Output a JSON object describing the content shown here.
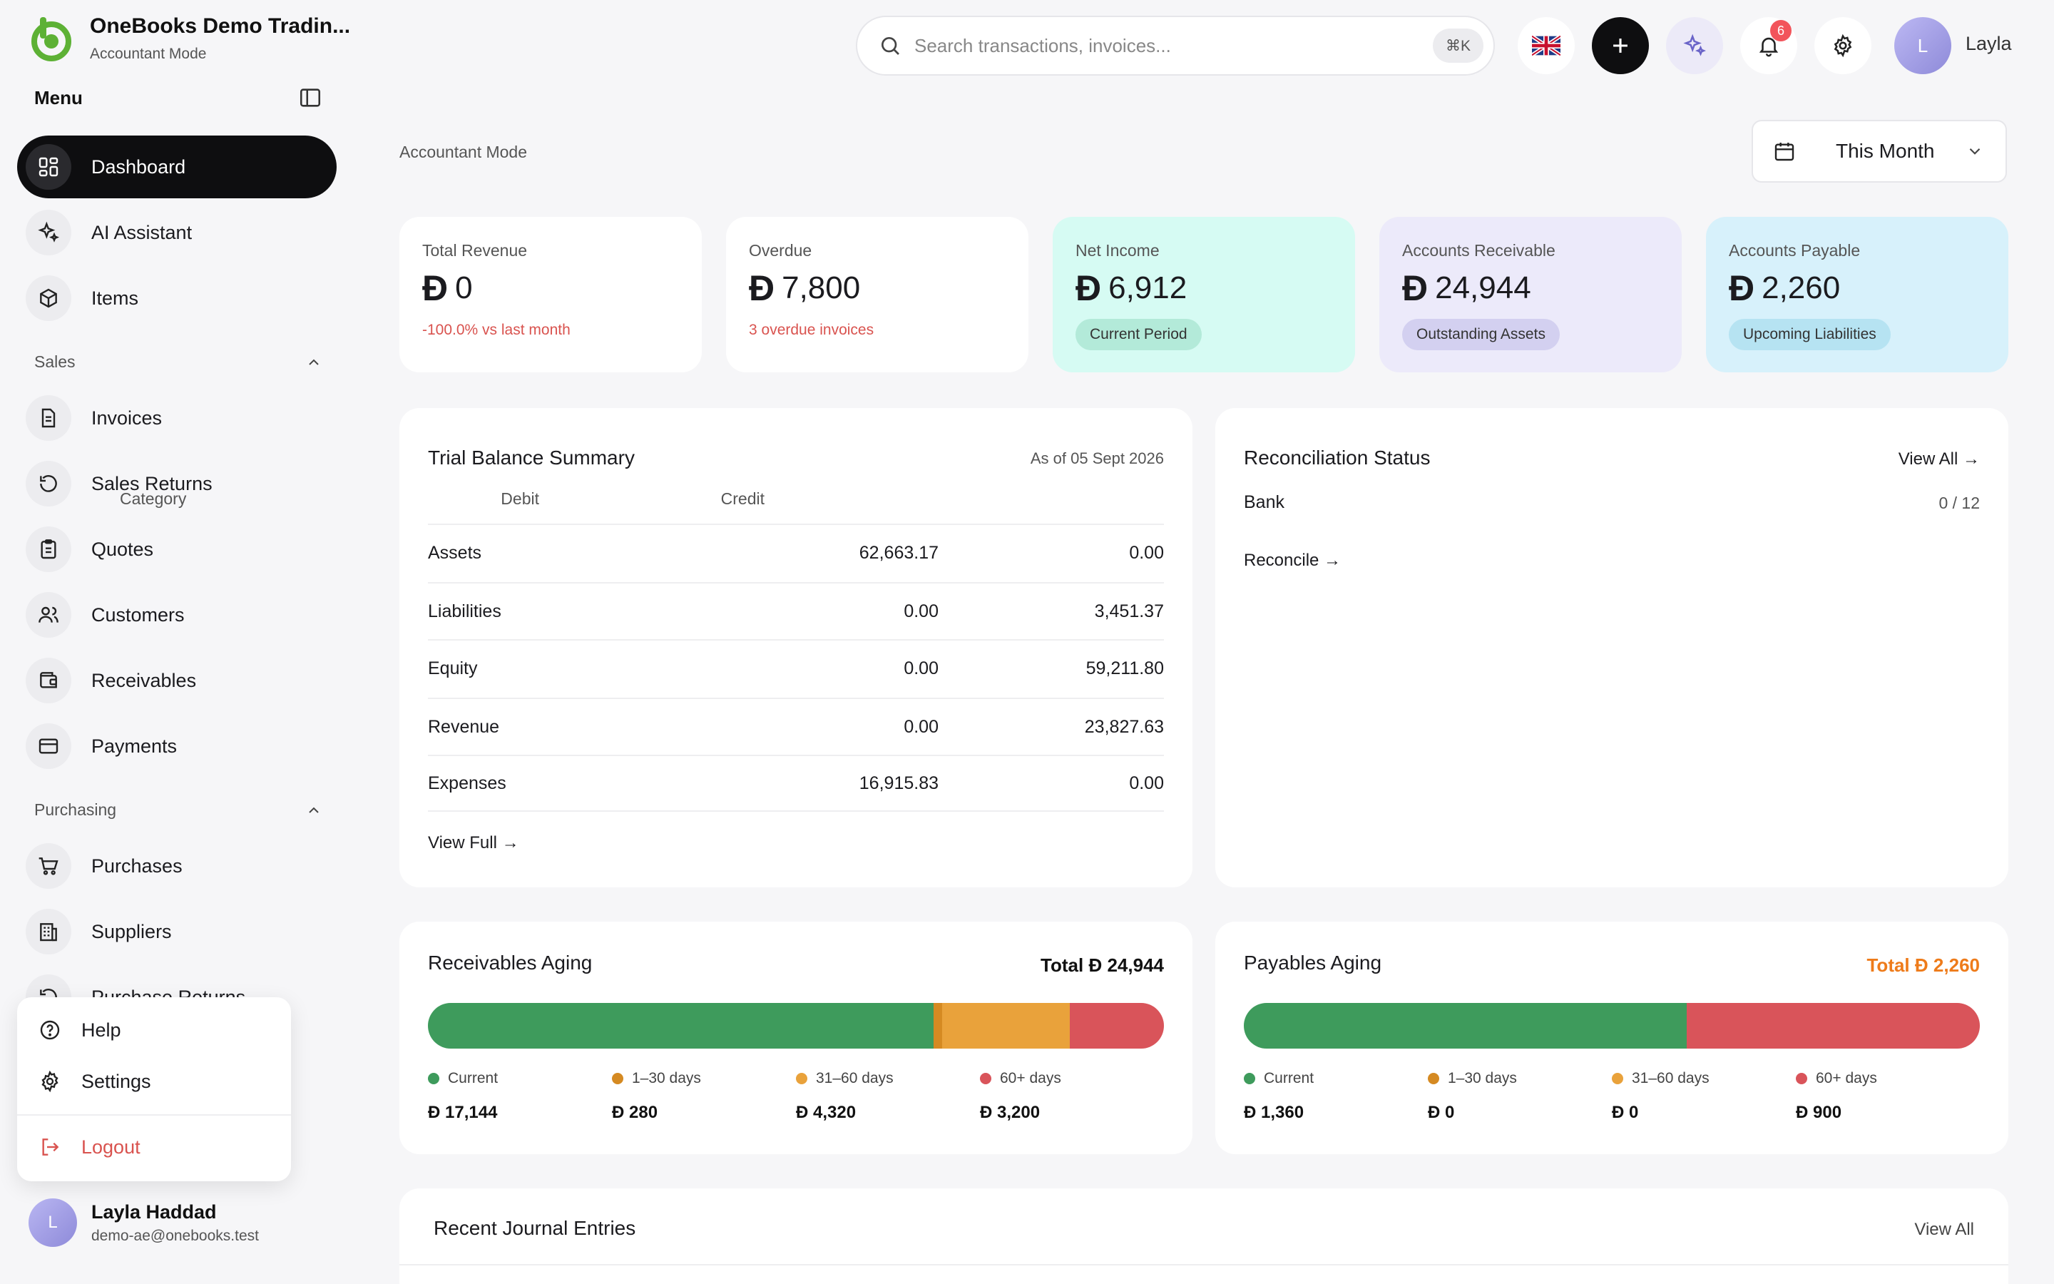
{
  "brand": {
    "name": "OneBooks Demo Tradin...",
    "mode": "Accountant Mode"
  },
  "menu": {
    "title": "Menu"
  },
  "nav": {
    "top": [
      {
        "label": "Dashboard",
        "icon": "grid-icon",
        "active": true
      },
      {
        "label": "AI Assistant",
        "icon": "sparkle-icon"
      },
      {
        "label": "Items",
        "icon": "box-icon"
      }
    ],
    "sales_label": "Sales",
    "sales": [
      {
        "label": "Invoices",
        "icon": "document-icon"
      },
      {
        "label": "Sales Returns",
        "icon": "undo-icon"
      },
      {
        "label": "Quotes",
        "icon": "clipboard-icon"
      },
      {
        "label": "Customers",
        "icon": "users-icon"
      },
      {
        "label": "Receivables",
        "icon": "wallet-icon"
      },
      {
        "label": "Payments",
        "icon": "card-icon"
      }
    ],
    "purchasing_label": "Purchasing",
    "purchasing": [
      {
        "label": "Purchases",
        "icon": "cart-icon"
      },
      {
        "label": "Suppliers",
        "icon": "building-icon"
      },
      {
        "label": "Purchase Returns",
        "icon": "undo-icon"
      }
    ]
  },
  "popup": {
    "help": "Help",
    "settings": "Settings",
    "logout": "Logout"
  },
  "user": {
    "initial": "L",
    "name": "Layla Haddad",
    "email": "demo-ae@onebooks.test",
    "short_name": "Layla"
  },
  "search": {
    "placeholder": "Search transactions, invoices...",
    "shortcut": "⌘K"
  },
  "notifications": {
    "count": "6"
  },
  "page": {
    "label": "Accountant Mode",
    "period": "This Month"
  },
  "currency_symbol": "Ð",
  "kpis": [
    {
      "label": "Total Revenue",
      "value": "0",
      "note": "-100.0% vs last month"
    },
    {
      "label": "Overdue",
      "value": "7,800",
      "note": "3 overdue invoices"
    },
    {
      "label": "Net Income",
      "value": "6,912",
      "pill": "Current Period"
    },
    {
      "label": "Accounts Receivable",
      "value": "24,944",
      "pill": "Outstanding Assets"
    },
    {
      "label": "Accounts Payable",
      "value": "2,260",
      "pill": "Upcoming Liabilities"
    }
  ],
  "trial_balance": {
    "title": "Trial Balance Summary",
    "as_of": "As of 05 Sept 2026",
    "headers": [
      "Category",
      "Debit",
      "Credit"
    ],
    "rows": [
      [
        "Assets",
        "62,663.17",
        "0.00"
      ],
      [
        "Liabilities",
        "0.00",
        "3,451.37"
      ],
      [
        "Equity",
        "0.00",
        "59,211.80"
      ],
      [
        "Revenue",
        "0.00",
        "23,827.63"
      ],
      [
        "Expenses",
        "16,915.83",
        "0.00"
      ]
    ],
    "view_full": "View Full →"
  },
  "reconciliation": {
    "title": "Reconciliation Status",
    "view_all": "View All →",
    "bank_label": "Bank",
    "bank_count": "0 / 12",
    "reconcile": "Reconcile →"
  },
  "receivables_aging": {
    "title": "Receivables Aging",
    "total_label": "Total",
    "total": "24,944",
    "buckets": [
      {
        "label": "Current",
        "value": "17,144",
        "amount": 17144,
        "color": "#3e9b5c"
      },
      {
        "label": "1–30 days",
        "value": "280",
        "amount": 280,
        "color": "#d58a22"
      },
      {
        "label": "31–60 days",
        "value": "4,320",
        "amount": 4320,
        "color": "#e9a23b"
      },
      {
        "label": "60+ days",
        "value": "3,200",
        "amount": 3200,
        "color": "#d9545a"
      }
    ]
  },
  "payables_aging": {
    "title": "Payables Aging",
    "total_label": "Total",
    "total": "2,260",
    "buckets": [
      {
        "label": "Current",
        "value": "1,360",
        "amount": 1360,
        "color": "#3e9b5c"
      },
      {
        "label": "1–30 days",
        "value": "0",
        "amount": 0,
        "color": "#d58a22"
      },
      {
        "label": "31–60 days",
        "value": "0",
        "amount": 0,
        "color": "#e9a23b"
      },
      {
        "label": "60+ days",
        "value": "900",
        "amount": 900,
        "color": "#d9545a"
      }
    ]
  },
  "journal": {
    "title": "Recent Journal Entries",
    "view_all": "View All"
  }
}
